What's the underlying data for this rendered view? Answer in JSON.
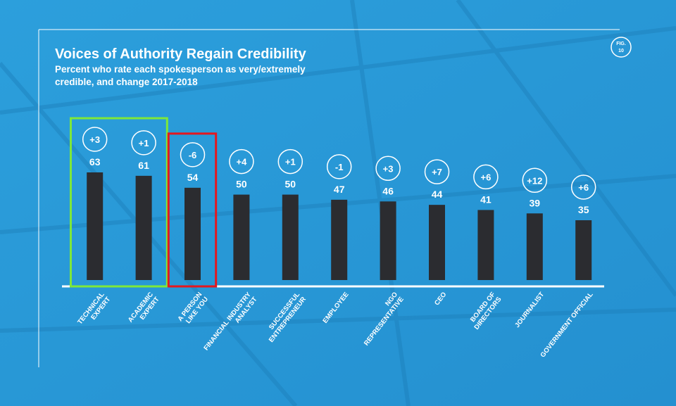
{
  "chart_data": {
    "type": "bar",
    "title": "Voices of Authority Regain Credibility",
    "subtitle": [
      "Percent who rate each spokesperson as very/extremely",
      "credible, and change 2017-2018"
    ],
    "figure": [
      "FIG.",
      "10"
    ],
    "categories": [
      [
        "TECHNICAL",
        "EXPERT"
      ],
      [
        "ACADEMIC",
        "EXPERT"
      ],
      [
        "A PERSON",
        "LIKE YOU"
      ],
      [
        "FINANCIAL INDUSTRY",
        "ANALYST"
      ],
      [
        "SUCCESSFUL",
        "ENTREPRENEUR"
      ],
      [
        "EMPLOYEE"
      ],
      [
        "NGO",
        "REPRESENTATIVE"
      ],
      [
        "CEO"
      ],
      [
        "BOARD OF",
        "DIRECTORS"
      ],
      [
        "JOURNALIST"
      ],
      [
        "GOVERNMENT OFFICIAL"
      ]
    ],
    "values": [
      63,
      61,
      54,
      50,
      50,
      47,
      46,
      44,
      41,
      39,
      35
    ],
    "changes": [
      3,
      1,
      -6,
      4,
      1,
      -1,
      3,
      7,
      6,
      12,
      6
    ],
    "change_labels": [
      "+3",
      "+1",
      "-6",
      "+4",
      "+1",
      "-1",
      "+3",
      "+7",
      "+6",
      "+12",
      "+6"
    ],
    "color": "#2b2c30",
    "ylim": [
      0,
      70
    ],
    "highlights": [
      {
        "indices": [
          0,
          1
        ],
        "color": "#7ee83a"
      },
      {
        "indices": [
          2
        ],
        "color": "#e5171e"
      }
    ]
  }
}
